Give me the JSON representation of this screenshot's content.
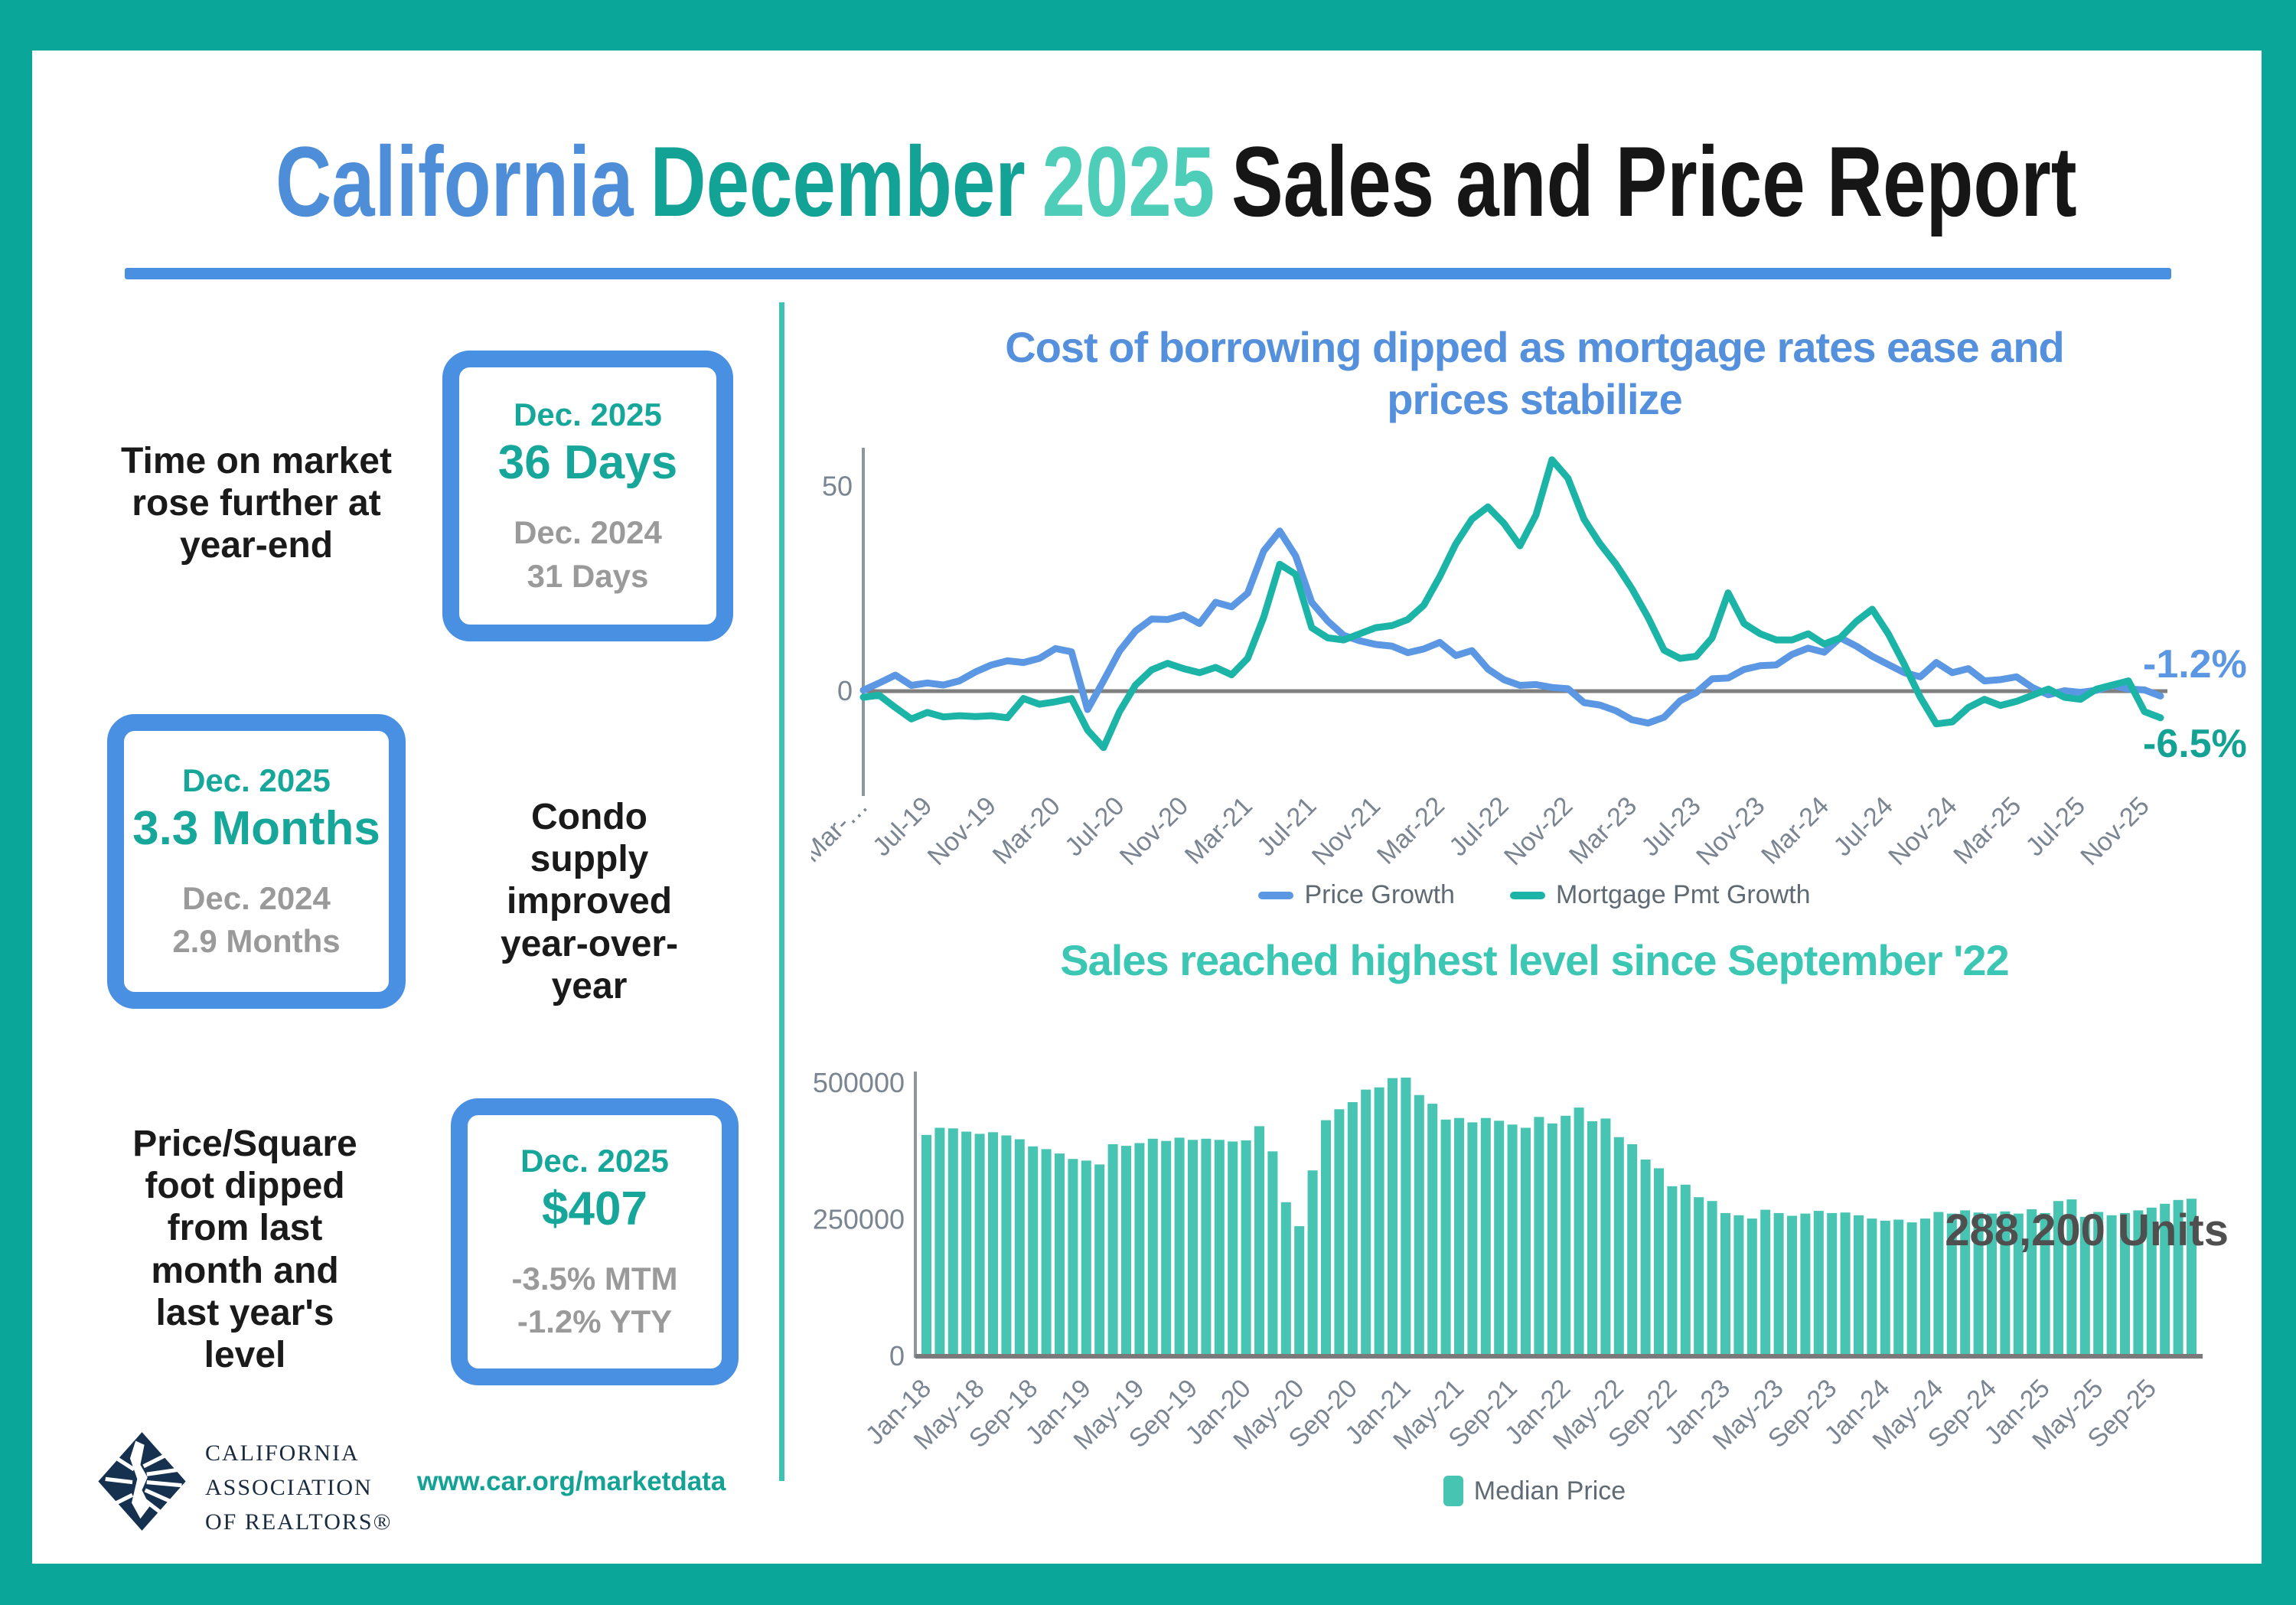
{
  "header": {
    "title_california": "California",
    "title_month": "December",
    "title_year": "2025",
    "title_rest": "Sales and Price Report"
  },
  "stats": {
    "row1": {
      "label": "Time on market rose further at year-end",
      "box": {
        "period": "Dec. 2025",
        "value": "36 Days",
        "prior_period": "Dec. 2024",
        "prior_value": "31 Days"
      }
    },
    "row2": {
      "label": "Condo supply improved year-over-year",
      "box": {
        "period": "Dec. 2025",
        "value": "3.3 Months",
        "prior_period": "Dec. 2024",
        "prior_value": "2.9 Months"
      }
    },
    "row3": {
      "label": "Price/Square foot dipped from last month and last year's level",
      "box": {
        "period": "Dec. 2025",
        "value": "$407",
        "prior_period": "-3.5% MTM",
        "prior_value": "-1.2% YTY"
      }
    }
  },
  "footer": {
    "logo_line1": "CALIFORNIA",
    "logo_line2": "ASSOCIATION",
    "logo_line3": "OF REALTORS®",
    "link": "www.car.org/marketdata"
  },
  "colors": {
    "frame_teal": "#0aa69a",
    "accent_blue": "#4a90e2",
    "stat_teal": "#17a79a",
    "stat_gray": "#9a9a9a",
    "bar_teal": "#47c4b2",
    "line_blue": "#5b97e3",
    "line_teal": "#1db4a8",
    "tick_gray": "#7a8591",
    "annotation_gray": "#4f4f4f"
  },
  "chart_data": [
    {
      "type": "line",
      "title": "Cost of borrowing dipped as mortgage rates ease and prices stabilize",
      "title_lines": [
        "Cost of borrowing dipped as mortgage rates ease and",
        "prices stabilize"
      ],
      "x_monthly_range": [
        "Mar-19",
        "Dec-25"
      ],
      "tick_labels": [
        "Mar-…",
        "Jul-19",
        "Nov-19",
        "Mar-20",
        "Jul-20",
        "Nov-20",
        "Mar-21",
        "Jul-21",
        "Nov-21",
        "Mar-22",
        "Jul-22",
        "Nov-22",
        "Mar-23",
        "Jul-23",
        "Nov-23",
        "Mar-24",
        "Jul-24",
        "Nov-24",
        "Mar-25",
        "Jul-25",
        "Nov-25"
      ],
      "tick_step": 4,
      "yticks": [
        0,
        50
      ],
      "ylim": [
        -20,
        62
      ],
      "grid": false,
      "legend_position": "bottom",
      "series": [
        {
          "name": "Price Growth",
          "color": "#5b97e3",
          "values": [
            0.2,
            2,
            3.9,
            1.4,
            2,
            1.5,
            2.5,
            4.7,
            6.4,
            7.4,
            7,
            8,
            10.4,
            9.6,
            -4.5,
            2.5,
            9.8,
            14.7,
            17.6,
            17.5,
            18.6,
            16.5,
            21.7,
            20.6,
            23.9,
            34.2,
            39.1,
            33,
            21.7,
            17.1,
            13.6,
            12.3,
            11.4,
            11,
            9.4,
            10.3,
            11.9,
            8.7,
            9.9,
            5.4,
            2.8,
            1.4,
            1.6,
            0.9,
            0.6,
            -2.8,
            -3.4,
            -4.8,
            -7,
            -7.8,
            -6.4,
            -2.4,
            -0.4,
            3,
            3.2,
            5.3,
            6.2,
            6.4,
            9,
            10.5,
            9.5,
            13,
            11,
            8.5,
            6.5,
            4.5,
            3.5,
            7,
            4.5,
            5.5,
            2.5,
            2.8,
            3.5,
            0.9,
            -0.9,
            0.1,
            -0.3,
            0.2,
            1.4,
            0.5,
            0.3,
            -1.2
          ]
        },
        {
          "name": "Mortgage Pmt Growth",
          "color": "#1db4a8",
          "values": [
            -1.5,
            -1,
            -4,
            -6.8,
            -5.2,
            -6.3,
            -6,
            -6.2,
            -6,
            -6.5,
            -1.8,
            -3.2,
            -2.6,
            -1.8,
            -9.5,
            -13.8,
            -5,
            1.5,
            5.2,
            6.8,
            5.5,
            4.5,
            5.8,
            4,
            8,
            18,
            31,
            28.5,
            15.5,
            13,
            12.5,
            14,
            15.5,
            16,
            17.5,
            21,
            28,
            36,
            42,
            45,
            41,
            35.5,
            43,
            56.5,
            52,
            42,
            36,
            31,
            25,
            18,
            10,
            8,
            8.5,
            13,
            24,
            16.5,
            14,
            12.5,
            12.5,
            14,
            11.5,
            13,
            17,
            20,
            14,
            6.5,
            -1.5,
            -8,
            -7.5,
            -4,
            -2,
            -3.5,
            -2.5,
            -1,
            0.5,
            -1.5,
            -2,
            0.5,
            1.5,
            2.5,
            -5,
            -6.5
          ]
        }
      ],
      "end_labels": [
        {
          "series": "Price Growth",
          "text": "-1.2%"
        },
        {
          "series": "Mortgage Pmt Growth",
          "text": "-6.5%"
        }
      ]
    },
    {
      "type": "bar",
      "title": "Sales reached highest level since September '22",
      "x_monthly_range": [
        "Jan-18",
        "Dec-25"
      ],
      "tick_labels": [
        "Jan-18",
        "May-18",
        "Sep-18",
        "Jan-19",
        "May-19",
        "Sep-19",
        "Jan-20",
        "May-20",
        "Sep-20",
        "Jan-21",
        "May-21",
        "Sep-21",
        "Jan-22",
        "May-22",
        "Sep-22",
        "Jan-23",
        "May-23",
        "Sep-23",
        "Jan-24",
        "May-24",
        "Sep-24",
        "Jan-25",
        "May-25",
        "Sep-25"
      ],
      "tick_step": 4,
      "yticks": [
        0,
        250000,
        500000
      ],
      "ylim": [
        0,
        520000
      ],
      "grid": false,
      "bar_color": "#47c4b2",
      "annotation": "288,200 Units",
      "legend": [
        "Median Price"
      ],
      "values": [
        405000,
        418000,
        417000,
        411000,
        407000,
        410000,
        404000,
        397000,
        384000,
        379000,
        371000,
        361000,
        358000,
        351000,
        388000,
        385000,
        390000,
        398000,
        394000,
        400000,
        396000,
        398000,
        396000,
        393000,
        395000,
        421000,
        375000,
        282000,
        238000,
        340000,
        432000,
        452000,
        465000,
        488000,
        492000,
        509000,
        510000,
        478000,
        462000,
        433000,
        436000,
        428000,
        436000,
        431000,
        424000,
        418000,
        438000,
        426000,
        440000,
        455000,
        430000,
        435000,
        401000,
        388000,
        360000,
        344000,
        311000,
        314000,
        291000,
        284000,
        262000,
        258000,
        252000,
        268000,
        262000,
        257000,
        261000,
        266000,
        262000,
        263000,
        258000,
        252000,
        248000,
        250000,
        245000,
        252000,
        264000,
        261000,
        267000,
        263000,
        261000,
        265000,
        261000,
        269000,
        262000,
        284000,
        287000,
        255000,
        264000,
        258000,
        262000,
        267000,
        272000,
        279000,
        286000,
        288200
      ]
    }
  ]
}
